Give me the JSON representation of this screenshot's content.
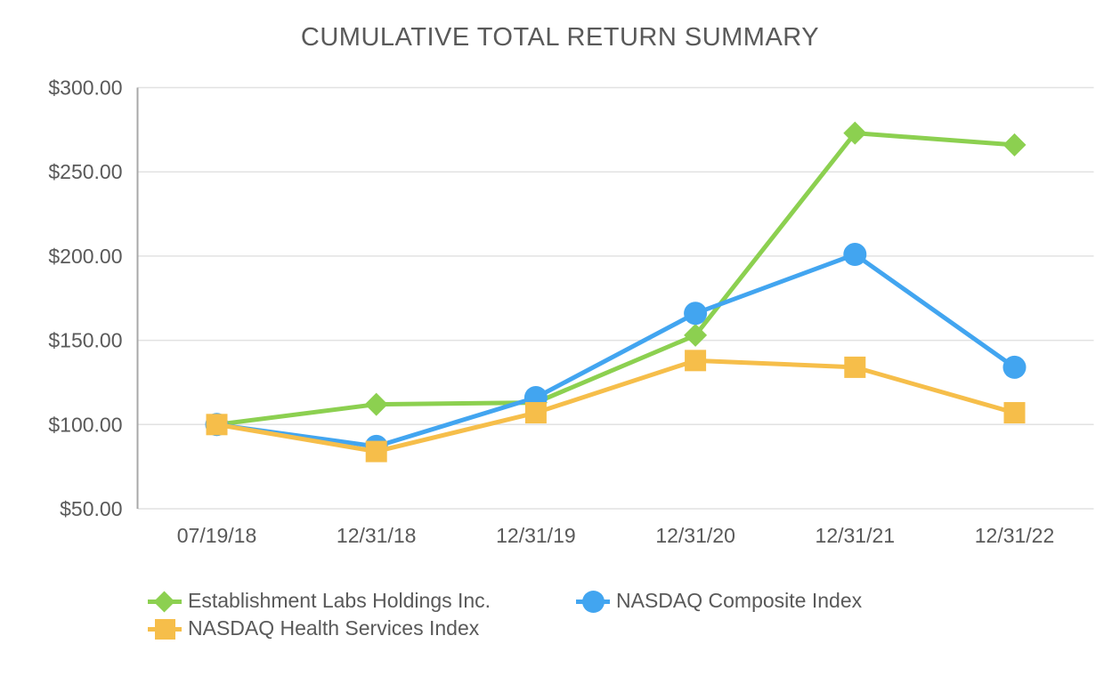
{
  "title": "CUMULATIVE TOTAL RETURN SUMMARY",
  "chart_data": {
    "type": "line",
    "title": "CUMULATIVE TOTAL RETURN SUMMARY",
    "categories": [
      "07/19/18",
      "12/31/18",
      "12/31/19",
      "12/31/20",
      "12/31/21",
      "12/31/22"
    ],
    "series": [
      {
        "name": "Establishment Labs Holdings Inc.",
        "marker": "diamond",
        "color": "#8CD050",
        "values": [
          100.0,
          112.0,
          113.0,
          153.0,
          273.0,
          266.0
        ]
      },
      {
        "name": "NASDAQ Composite Index",
        "marker": "circle",
        "color": "#42A5F0",
        "values": [
          100.0,
          87.0,
          116.0,
          166.0,
          201.0,
          134.0
        ]
      },
      {
        "name": "NASDAQ Health Services Index",
        "marker": "square",
        "color": "#F6BE4A",
        "values": [
          100.0,
          84.0,
          107.0,
          138.0,
          134.0,
          107.0
        ]
      }
    ],
    "xlabel": "",
    "ylabel": "",
    "ylim": [
      50,
      300
    ],
    "y_tick_labels": [
      "$300.00",
      "$250.00",
      "$200.00",
      "$150.00",
      "$100.00",
      "$50.00"
    ],
    "y_tick_values": [
      300,
      250,
      200,
      150,
      100,
      50
    ],
    "grid": "horizontal",
    "legend_position": "bottom",
    "colors": {
      "text": "#595959",
      "axis_line": "#a8a8a8",
      "gridline": "#e2e2e2",
      "background": "#ffffff"
    }
  }
}
